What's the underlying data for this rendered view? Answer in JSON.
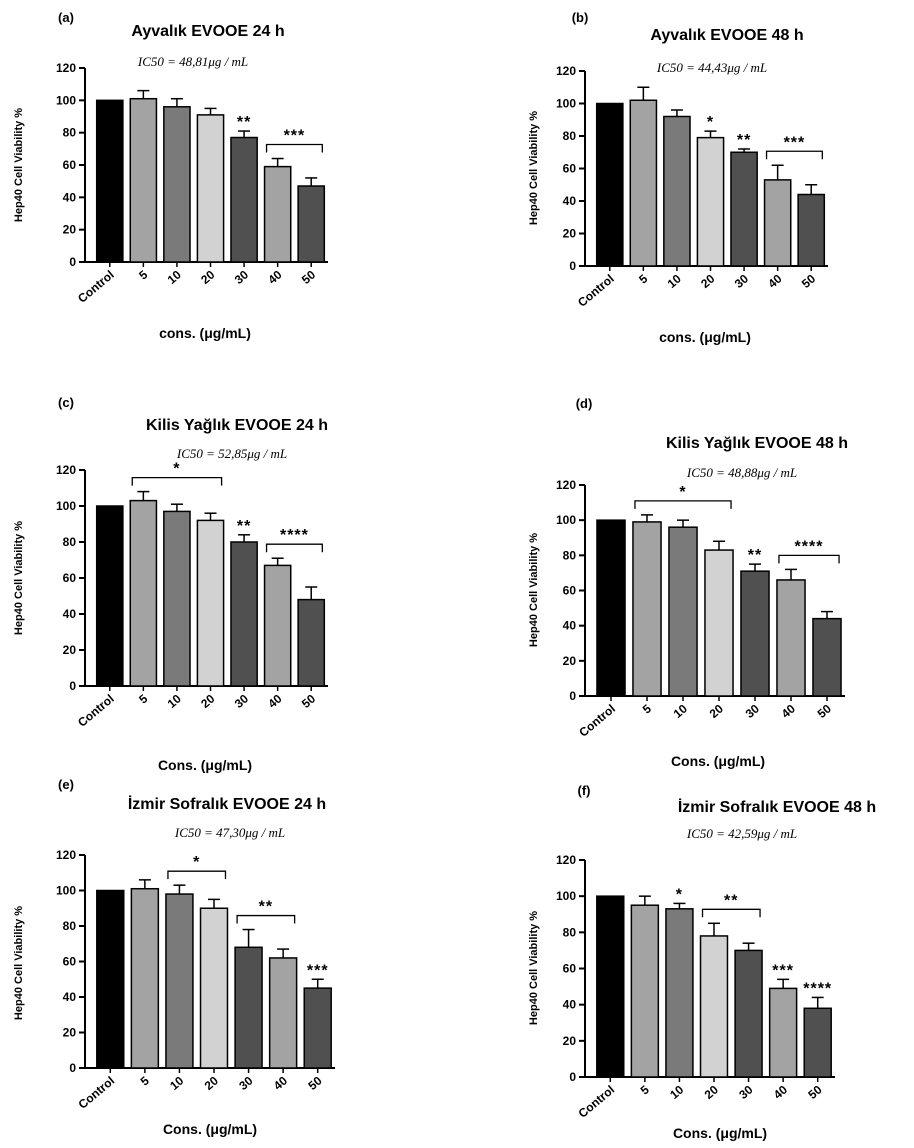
{
  "chart_data": [
    {
      "panel": "(a)",
      "type": "bar",
      "title": "Ayvalık EVOOE 24 h",
      "subtitle": "IC50 = 48,81μg / mL",
      "xlabel": "cons. (μg/mL)",
      "ylabel": "Hep40 Cell Viability %",
      "ylim": [
        0,
        120
      ],
      "yticks": [
        "0",
        "20",
        "40",
        "60",
        "80",
        "100",
        "120"
      ],
      "categories": [
        "Control",
        "5",
        "10",
        "20",
        "30",
        "40",
        "50"
      ],
      "values": [
        100,
        101,
        96,
        91,
        77,
        59,
        47
      ],
      "errors": [
        0,
        5,
        5,
        4,
        4,
        5,
        5
      ],
      "colors": [
        "#000000",
        "#a3a3a3",
        "#7a7a7a",
        "#d2d2d2",
        "#505050",
        "#a3a3a3",
        "#505050"
      ],
      "annotations": [
        {
          "text": "**",
          "category": "30"
        },
        {
          "text": "***",
          "from": "40",
          "to": "50"
        }
      ]
    },
    {
      "panel": "(b)",
      "type": "bar",
      "title": "Ayvalık EVOOE 48 h",
      "subtitle": "IC50 = 44,43μg / mL",
      "xlabel": "cons. (μg/mL)",
      "ylabel": "Hep40 Cell Viability %",
      "ylim": [
        0,
        120
      ],
      "yticks": [
        "0",
        "20",
        "40",
        "60",
        "80",
        "100",
        "120"
      ],
      "categories": [
        "Control",
        "5",
        "10",
        "20",
        "30",
        "40",
        "50"
      ],
      "values": [
        100,
        102,
        92,
        79,
        70,
        53,
        44
      ],
      "errors": [
        0,
        8,
        4,
        4,
        2,
        9,
        6
      ],
      "colors": [
        "#000000",
        "#a3a3a3",
        "#7a7a7a",
        "#d2d2d2",
        "#505050",
        "#a3a3a3",
        "#505050"
      ],
      "annotations": [
        {
          "text": "*",
          "category": "20"
        },
        {
          "text": "**",
          "category": "30"
        },
        {
          "text": "***",
          "from": "40",
          "to": "50"
        }
      ]
    },
    {
      "panel": "(c)",
      "type": "bar",
      "title": "Kilis Yağlık EVOOE 24 h",
      "subtitle": "IC50 = 52,85μg / mL",
      "xlabel": "Cons. (μg/mL)",
      "ylabel": "Hep40 Cell Viability %",
      "ylim": [
        0,
        120
      ],
      "yticks": [
        "0",
        "20",
        "40",
        "60",
        "80",
        "100",
        "120"
      ],
      "categories": [
        "Control",
        "5",
        "10",
        "20",
        "30",
        "40",
        "50"
      ],
      "values": [
        100,
        103,
        97,
        92,
        80,
        67,
        48
      ],
      "errors": [
        0,
        5,
        4,
        4,
        4,
        4,
        7
      ],
      "colors": [
        "#000000",
        "#a3a3a3",
        "#7a7a7a",
        "#d2d2d2",
        "#505050",
        "#a3a3a3",
        "#505050"
      ],
      "annotations": [
        {
          "text": "*",
          "from": "5",
          "to": "20"
        },
        {
          "text": "**",
          "category": "30"
        },
        {
          "text": "****",
          "from": "40",
          "to": "50"
        }
      ]
    },
    {
      "panel": "(d)",
      "type": "bar",
      "title": "Kilis Yağlık EVOOE 48 h",
      "subtitle": "IC50 = 48,88μg / mL",
      "xlabel": "Cons. (μg/mL)",
      "ylabel": "Hep40 Cell Viability %",
      "ylim": [
        0,
        120
      ],
      "yticks": [
        "0",
        "20",
        "40",
        "60",
        "80",
        "100",
        "120"
      ],
      "categories": [
        "Control",
        "5",
        "10",
        "20",
        "30",
        "40",
        "50"
      ],
      "values": [
        100,
        99,
        96,
        83,
        71,
        66,
        44
      ],
      "errors": [
        0,
        4,
        4,
        5,
        4,
        6,
        4
      ],
      "colors": [
        "#000000",
        "#a3a3a3",
        "#7a7a7a",
        "#d2d2d2",
        "#505050",
        "#a3a3a3",
        "#505050"
      ],
      "annotations": [
        {
          "text": "*",
          "from": "5",
          "to": "20"
        },
        {
          "text": "**",
          "category": "30"
        },
        {
          "text": "****",
          "from": "40",
          "to": "50"
        }
      ]
    },
    {
      "panel": "(e)",
      "type": "bar",
      "title": "İzmir Sofralık EVOOE 24 h",
      "subtitle": "IC50 = 47,30μg / mL",
      "xlabel": "Cons. (μg/mL)",
      "ylabel": "Hep40 Cell Viability %",
      "ylim": [
        0,
        120
      ],
      "yticks": [
        "0",
        "20",
        "40",
        "60",
        "80",
        "100",
        "120"
      ],
      "categories": [
        "Control",
        "5",
        "10",
        "20",
        "30",
        "40",
        "50"
      ],
      "values": [
        100,
        101,
        98,
        90,
        68,
        62,
        45
      ],
      "errors": [
        0,
        5,
        5,
        5,
        10,
        5,
        5
      ],
      "colors": [
        "#000000",
        "#a3a3a3",
        "#7a7a7a",
        "#d2d2d2",
        "#505050",
        "#a3a3a3",
        "#505050"
      ],
      "annotations": [
        {
          "text": "*",
          "from": "10",
          "to": "20"
        },
        {
          "text": "**",
          "from": "30",
          "to": "40"
        },
        {
          "text": "***",
          "category": "50"
        }
      ]
    },
    {
      "panel": "(f)",
      "type": "bar",
      "title": "İzmir Sofralık EVOOE 48 h",
      "subtitle": "IC50 = 42,59μg / mL",
      "xlabel": "Cons. (μg/mL)",
      "ylabel": "Hep40 Cell Viability %",
      "ylim": [
        0,
        120
      ],
      "yticks": [
        "0",
        "20",
        "40",
        "60",
        "80",
        "100",
        "120"
      ],
      "categories": [
        "Control",
        "5",
        "10",
        "20",
        "30",
        "40",
        "50"
      ],
      "values": [
        100,
        95,
        93,
        78,
        70,
        49,
        38
      ],
      "errors": [
        0,
        5,
        3,
        7,
        4,
        5,
        6
      ],
      "colors": [
        "#000000",
        "#a3a3a3",
        "#7a7a7a",
        "#d2d2d2",
        "#505050",
        "#a3a3a3",
        "#505050"
      ],
      "annotations": [
        {
          "text": "*",
          "category": "10"
        },
        {
          "text": "**",
          "from": "20",
          "to": "30"
        },
        {
          "text": "***",
          "category": "40"
        },
        {
          "text": "****",
          "category": "50"
        }
      ]
    }
  ]
}
